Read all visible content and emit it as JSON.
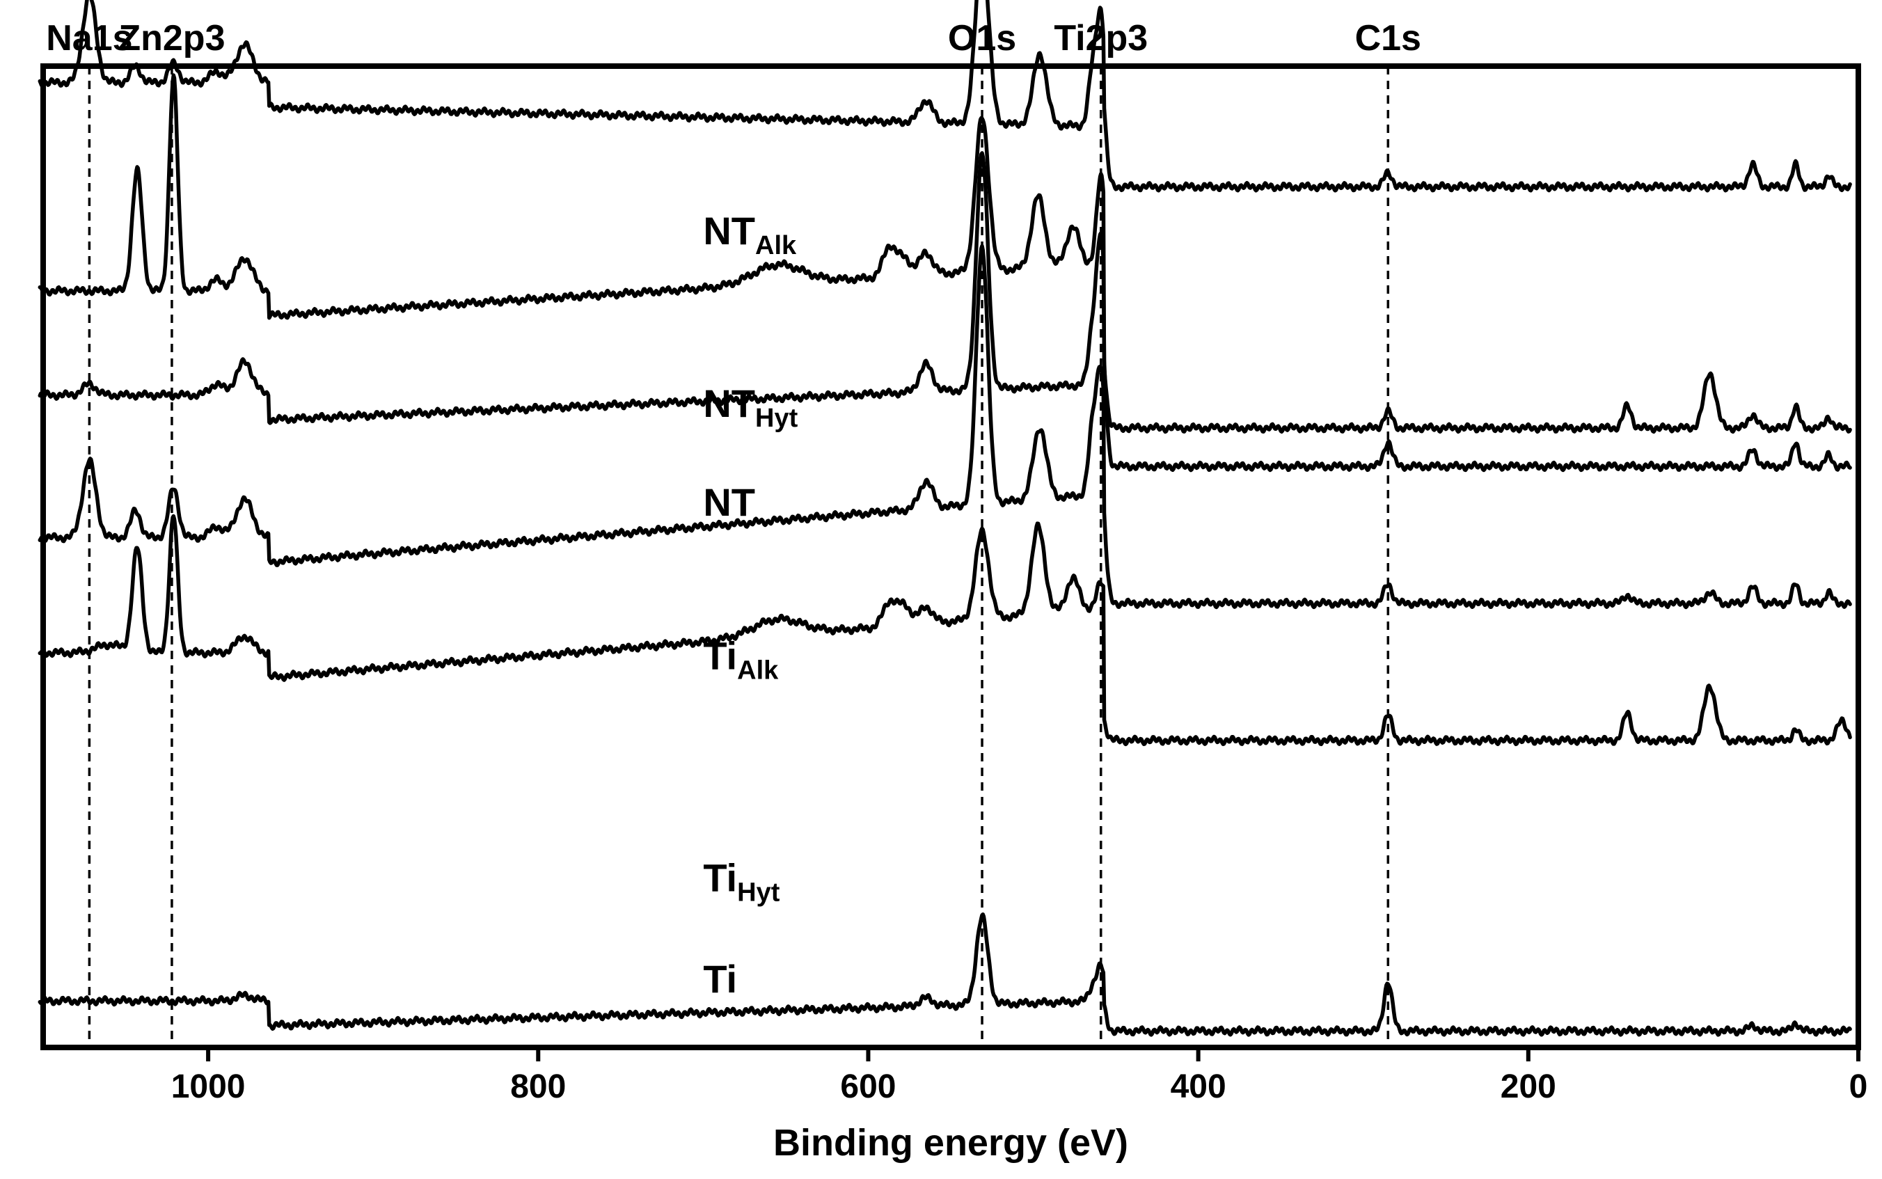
{
  "chart_data": {
    "type": "line",
    "title": "",
    "xlabel": "Binding energy (eV)",
    "ylabel": "",
    "xlim": [
      1100,
      0
    ],
    "x_reversed": true,
    "xticks": [
      1000,
      800,
      600,
      400,
      200,
      0
    ],
    "grid": false,
    "legend": "none (series labelled inline)",
    "reference_lines": [
      {
        "label": "Na1s",
        "x": 1072
      },
      {
        "label": "Zn2p3",
        "x": 1022
      },
      {
        "label": "O1s",
        "x": 531
      },
      {
        "label": "Ti2p3",
        "x": 459
      },
      {
        "label": "C1s",
        "x": 285
      }
    ],
    "series": [
      {
        "name": "NTAlk",
        "label_main": "NT",
        "label_sub": "Alk",
        "label_x": 700,
        "label_offset": 2.85,
        "offset": 11.5,
        "base_left": 5.8,
        "base_mid": 5.0,
        "base_right": 3.9,
        "peaks": [
          [
            1072,
            1.6,
            4
          ],
          [
            1044,
            0.3,
            3
          ],
          [
            1021,
            0.35,
            3
          ],
          [
            995,
            0.2,
            4
          ],
          [
            978,
            0.7,
            5
          ],
          [
            565,
            0.4,
            4
          ],
          [
            531,
            3.2,
            4
          ],
          [
            496,
            1.3,
            4
          ],
          [
            464,
            1.0,
            2.5
          ],
          [
            459,
            2.0,
            2.5
          ],
          [
            285,
            0.25,
            2.5
          ],
          [
            64,
            0.4,
            2.5
          ],
          [
            38,
            0.4,
            2
          ],
          [
            18,
            0.2,
            2
          ]
        ]
      },
      {
        "name": "NTHyt",
        "label_main": "NT",
        "label_sub": "Hyt",
        "label_x": 700,
        "label_offset": 2.2,
        "offset": 9.0,
        "base_left": 4.5,
        "base_mid": 5.0,
        "base_right": 2.0,
        "peaks": [
          [
            1043,
            2.2,
            3
          ],
          [
            1021,
            3.9,
            2.5
          ],
          [
            995,
            0.2,
            4
          ],
          [
            978,
            0.6,
            5
          ],
          [
            655,
            0.35,
            15
          ],
          [
            587,
            0.55,
            4
          ],
          [
            578,
            0.3,
            4
          ],
          [
            565,
            0.4,
            4
          ],
          [
            531,
            2.8,
            4
          ],
          [
            497,
            1.3,
            4
          ],
          [
            476,
            0.7,
            4
          ],
          [
            459,
            1.6,
            2.5
          ],
          [
            285,
            0.3,
            2.5
          ],
          [
            140,
            0.4,
            2.5
          ],
          [
            90,
            1.0,
            3.5
          ],
          [
            64,
            0.25,
            2.5
          ],
          [
            38,
            0.4,
            2
          ],
          [
            18,
            0.2,
            2
          ]
        ]
      },
      {
        "name": "NT",
        "label_main": "NT",
        "label_sub": "",
        "label_x": 700,
        "label_offset": 2.9,
        "offset": 6.5,
        "base_left": 5.1,
        "base_mid": 5.3,
        "base_right": 3.8,
        "peaks": [
          [
            1072,
            0.2,
            4
          ],
          [
            995,
            0.2,
            4
          ],
          [
            978,
            0.6,
            5
          ],
          [
            565,
            0.5,
            4
          ],
          [
            531,
            4.3,
            3.5
          ],
          [
            464,
            1.0,
            2.5
          ],
          [
            459,
            2.6,
            2.5
          ],
          [
            285,
            0.45,
            2.5
          ],
          [
            64,
            0.3,
            2.5
          ],
          [
            38,
            0.45,
            2
          ],
          [
            18,
            0.2,
            2
          ]
        ]
      },
      {
        "name": "TiAlk",
        "label_main": "Ti",
        "label_sub": "Alk",
        "label_x": 700,
        "label_offset": 2.6,
        "offset": 4.0,
        "base_left": 5.0,
        "base_mid": 5.8,
        "base_right": 3.8,
        "peaks": [
          [
            1072,
            1.4,
            4
          ],
          [
            1044,
            0.5,
            3
          ],
          [
            1021,
            0.9,
            3
          ],
          [
            995,
            0.2,
            4
          ],
          [
            978,
            0.7,
            5
          ],
          [
            565,
            0.5,
            4
          ],
          [
            531,
            4.7,
            3.5
          ],
          [
            496,
            1.3,
            4
          ],
          [
            464,
            1.2,
            2.5
          ],
          [
            459,
            2.2,
            2.5
          ],
          [
            285,
            0.35,
            2.5
          ],
          [
            140,
            0.15,
            2.5
          ],
          [
            90,
            0.2,
            3
          ],
          [
            64,
            0.3,
            2.5
          ],
          [
            38,
            0.35,
            2
          ],
          [
            18,
            0.2,
            2
          ]
        ]
      },
      {
        "name": "TiHyt",
        "label_main": "Ti",
        "label_sub": "Hyt",
        "label_x": 700,
        "label_offset": 1.05,
        "offset": 1.5,
        "base_left": 5.4,
        "base_mid": 6.2,
        "base_right": 3.8,
        "peaks": [
          [
            1060,
            0.15,
            8
          ],
          [
            1043,
            1.9,
            3
          ],
          [
            1021,
            2.5,
            2.5
          ],
          [
            978,
            0.3,
            5
          ],
          [
            655,
            0.3,
            15
          ],
          [
            587,
            0.45,
            4
          ],
          [
            578,
            0.35,
            4
          ],
          [
            565,
            0.3,
            4
          ],
          [
            531,
            1.6,
            4
          ],
          [
            497,
            1.6,
            4
          ],
          [
            476,
            0.6,
            4
          ],
          [
            459,
            0.5,
            2.5
          ],
          [
            285,
            0.45,
            2.5
          ],
          [
            140,
            0.5,
            2.5
          ],
          [
            90,
            1.0,
            3.5
          ],
          [
            38,
            0.2,
            2
          ],
          [
            10,
            0.35,
            3
          ]
        ]
      },
      {
        "name": "Ti",
        "label_main": "Ti",
        "label_sub": "",
        "label_x": 700,
        "label_offset": 0.7,
        "offset": 0.0,
        "base_left": 0.55,
        "base_mid": 0.55,
        "base_right": 0.0,
        "peaks": [
          [
            978,
            0.1,
            5
          ],
          [
            565,
            0.15,
            4
          ],
          [
            531,
            1.6,
            3.5
          ],
          [
            464,
            0.25,
            2.5
          ],
          [
            459,
            0.6,
            2.5
          ],
          [
            285,
            0.9,
            2.5
          ],
          [
            64,
            0.1,
            2.5
          ],
          [
            38,
            0.15,
            2
          ]
        ]
      }
    ]
  }
}
